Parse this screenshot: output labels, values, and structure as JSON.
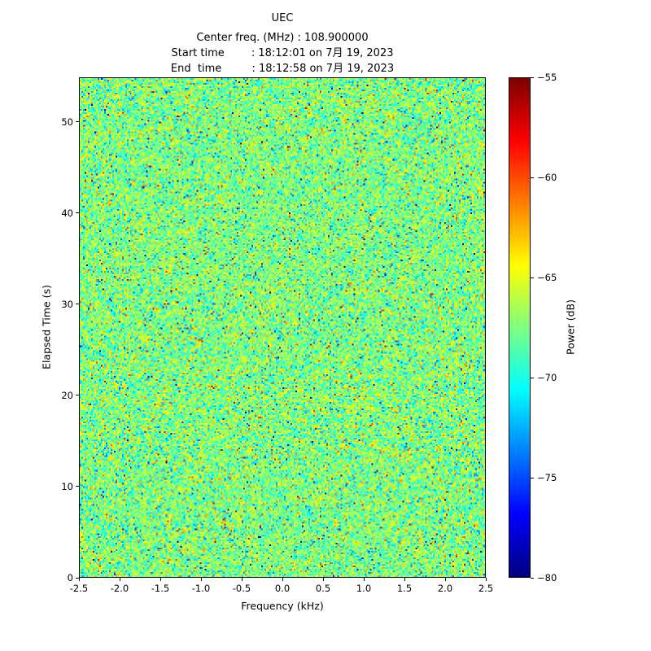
{
  "header": {
    "title": "UEC",
    "center_freq_line": "Center freq. (MHz) : 108.900000",
    "start_time_line": "Start time        : 18:12:01 on 7月 19, 2023",
    "end_time_line": "End  time         : 18:12:58 on 7月 19, 2023"
  },
  "axes": {
    "xlabel": "Frequency (kHz)",
    "ylabel": "Elapsed Time (s)",
    "xlim": [
      -2.5,
      2.5
    ],
    "ylim": [
      0,
      54.9
    ],
    "xtick_values": [
      -2.5,
      -2.0,
      -1.5,
      -1.0,
      -0.5,
      0.0,
      0.5,
      1.0,
      1.5,
      2.0,
      2.5
    ],
    "xtick_labels": [
      "-2.5",
      "-2.0",
      "-1.5",
      "-1.0",
      "-0.5",
      "0.0",
      "0.5",
      "1.0",
      "1.5",
      "2.0",
      "2.5"
    ],
    "ytick_values": [
      0,
      10,
      20,
      30,
      40,
      50
    ],
    "ytick_labels": [
      "0",
      "10",
      "20",
      "30",
      "40",
      "50"
    ]
  },
  "colorbar": {
    "label": "Power (dB)",
    "min": -80,
    "max": -55,
    "tick_values": [
      -55,
      -60,
      -65,
      -70,
      -75,
      -80
    ],
    "tick_labels": [
      "−55",
      "−60",
      "−65",
      "−70",
      "−75",
      "−80"
    ]
  },
  "chart_data": {
    "type": "heatmap",
    "title": "UEC",
    "subtitle_lines": [
      "Center freq. (MHz) : 108.900000",
      "Start time        : 18:12:01 on 7月 19, 2023",
      "End  time         : 18:12:58 on 7月 19, 2023"
    ],
    "xlabel": "Frequency (kHz)",
    "ylabel": "Elapsed Time (s)",
    "xlim": [
      -2.5,
      2.5
    ],
    "ylim": [
      0,
      54.9
    ],
    "value_label": "Power (dB)",
    "value_range": [
      -80,
      -55
    ],
    "colormap": "jet",
    "colormap_stops": [
      {
        "t": 0.0,
        "rgb": [
          0,
          0,
          127
        ]
      },
      {
        "t": 0.125,
        "rgb": [
          0,
          0,
          255
        ]
      },
      {
        "t": 0.375,
        "rgb": [
          0,
          255,
          255
        ]
      },
      {
        "t": 0.625,
        "rgb": [
          255,
          255,
          0
        ]
      },
      {
        "t": 0.875,
        "rgb": [
          255,
          0,
          0
        ]
      },
      {
        "t": 1.0,
        "rgb": [
          127,
          0,
          0
        ]
      }
    ],
    "data_description": "Unstructured broadband RF noise spectrogram; per-bin power approximately gaussian around -67.5 dB (sigma ~2.5 dB) with sparse outliers spanning the full -80 to -55 dB range; no visible signal carriers.",
    "noise_model": {
      "rows": 308,
      "cols": 250,
      "mean_db": -67.5,
      "sigma_db": 2.5,
      "outlier_prob": 0.018,
      "seed": 1337
    },
    "legend_position": "right-colorbar",
    "grid": false
  }
}
